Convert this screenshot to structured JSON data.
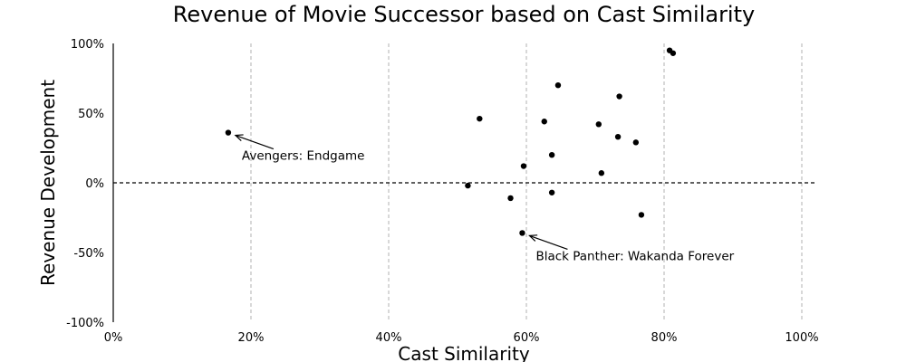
{
  "chart_data": {
    "type": "scatter",
    "title": "Revenue of Movie Successor based on Cast Similarity",
    "xlabel": "Cast Similarity",
    "ylabel": "Revenue Development",
    "xlim": [
      0,
      102
    ],
    "ylim": [
      -100,
      100
    ],
    "x_ticks": [
      0,
      20,
      40,
      60,
      80,
      100
    ],
    "x_tick_labels": [
      "0%",
      "20%",
      "40%",
      "60%",
      "80%",
      "100%"
    ],
    "y_ticks": [
      -100,
      -50,
      0,
      50,
      100
    ],
    "y_tick_labels": [
      "-100%",
      "-50%",
      "0%",
      "50%",
      "100%"
    ],
    "grid": "vertical dashed",
    "reference_line_y": 0,
    "points": [
      {
        "x": 16.7,
        "y": 36
      },
      {
        "x": 51.5,
        "y": -2
      },
      {
        "x": 53.2,
        "y": 46
      },
      {
        "x": 57.7,
        "y": -11
      },
      {
        "x": 59.4,
        "y": -36
      },
      {
        "x": 59.6,
        "y": 12
      },
      {
        "x": 62.6,
        "y": 44
      },
      {
        "x": 63.7,
        "y": 20
      },
      {
        "x": 63.7,
        "y": -7
      },
      {
        "x": 64.6,
        "y": 70
      },
      {
        "x": 70.5,
        "y": 42
      },
      {
        "x": 70.9,
        "y": 7
      },
      {
        "x": 73.3,
        "y": 33
      },
      {
        "x": 73.5,
        "y": 62
      },
      {
        "x": 75.9,
        "y": 29
      },
      {
        "x": 76.7,
        "y": -23
      },
      {
        "x": 80.8,
        "y": 95
      },
      {
        "x": 81.3,
        "y": 93
      }
    ],
    "annotations": [
      {
        "text": "Avengers: Endgame",
        "point": {
          "x": 16.7,
          "y": 36
        }
      },
      {
        "text": "Black Panther: Wakanda Forever",
        "point": {
          "x": 59.4,
          "y": -36
        }
      }
    ]
  }
}
